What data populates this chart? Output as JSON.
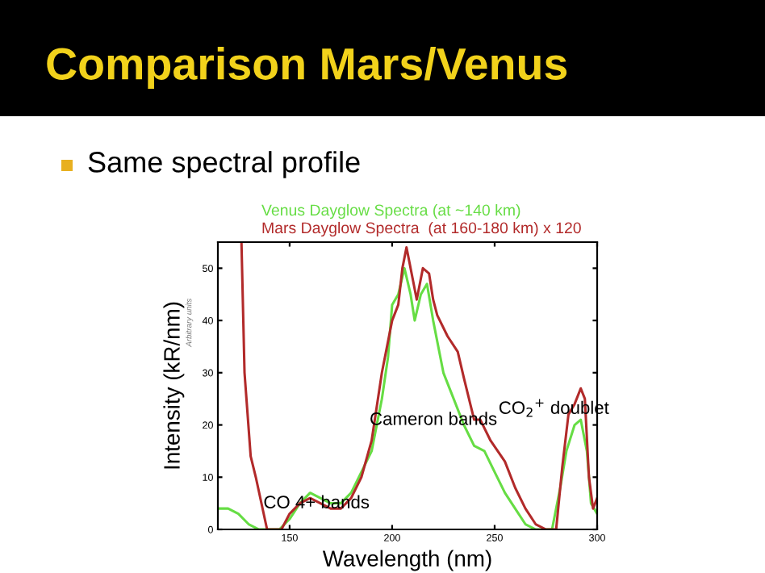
{
  "chart_data": {
    "type": "line",
    "title": "Comparison Mars/Venus",
    "subtitle": "Same spectral profile",
    "xlabel": "Wavelength (nm)",
    "ylabel": "Intensity (kR/nm)",
    "annotations": [
      "Arbitrary units",
      "CO 4+ bands",
      "Cameron bands",
      "CO$_{2}$$^{+}$ doublet"
    ],
    "xlim": [
      115,
      300
    ],
    "ylim": [
      0,
      55
    ],
    "xticks": [
      150,
      200,
      250,
      300
    ],
    "yticks": [
      0,
      10,
      20,
      30,
      40,
      50
    ],
    "grid": false,
    "legend": false,
    "series": [
      {
        "name": "Venus Dayglow Spectra (at ~140 km)",
        "color": "#66dd44",
        "x": [
          115,
          120,
          125,
          130,
          135,
          140,
          145,
          150,
          155,
          160,
          165,
          170,
          175,
          180,
          185,
          190,
          195,
          198,
          200,
          203,
          206,
          209,
          211,
          214,
          217,
          220,
          225,
          230,
          235,
          240,
          245,
          250,
          255,
          260,
          265,
          270,
          278,
          282,
          285,
          289,
          292,
          295,
          297,
          300
        ],
        "values": [
          4,
          4,
          3,
          1,
          0,
          0,
          0,
          2,
          5,
          7,
          6,
          5,
          5,
          7,
          11,
          15,
          25,
          33,
          43,
          45,
          50,
          45,
          40,
          45,
          47,
          40,
          30,
          25,
          20,
          16,
          15,
          11,
          7,
          4,
          1,
          0,
          0,
          8,
          15,
          20,
          21,
          15,
          5,
          3
        ]
      },
      {
        "name": "Mars Dayglow Spectra  (at 160-180 km) x 120",
        "color": "#b22a2a",
        "x": [
          126.5,
          128,
          131,
          133.5,
          139,
          146,
          150,
          155,
          160,
          165,
          170,
          175,
          180,
          185,
          190,
          195,
          200,
          203,
          205,
          207,
          210,
          212,
          215,
          218,
          220,
          222,
          227,
          232,
          235,
          240,
          243,
          248,
          255,
          260,
          265,
          270,
          275,
          280,
          283,
          286,
          289,
          292,
          294,
          296,
          298,
          300
        ],
        "values": [
          55,
          30,
          14,
          10,
          0,
          0,
          3,
          5,
          6,
          5,
          4,
          4,
          6,
          10,
          17,
          30,
          40,
          43,
          50,
          54,
          48,
          44,
          50,
          49,
          44,
          41,
          37,
          34,
          29,
          21,
          21,
          17,
          13,
          8,
          4,
          1,
          0,
          0,
          12,
          22,
          24,
          27,
          25,
          10,
          4,
          6
        ]
      }
    ]
  }
}
